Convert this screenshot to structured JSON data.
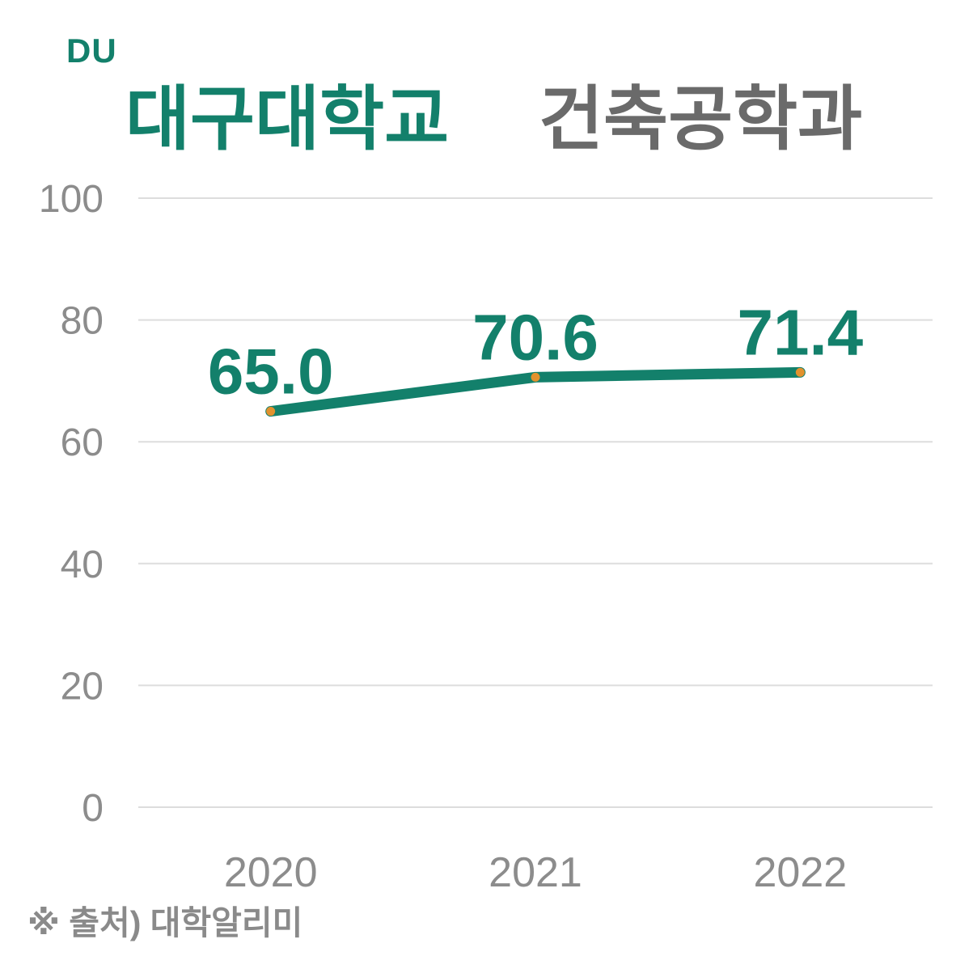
{
  "header": {
    "logo": "DU",
    "title_university": "대구대학교",
    "title_department": "건축공학과"
  },
  "footer": {
    "source_note": "※ 출처) 대학알리미"
  },
  "colors": {
    "accent_teal": "#13806B",
    "title_gray": "#6A6A6A",
    "axis_gray": "#8C8C8C",
    "gridline_gray": "#DDDDDD",
    "marker_orange": "#E2922E",
    "background": "#FFFFFF"
  },
  "chart_data": {
    "type": "line",
    "title": "대구대학교 건축공학과",
    "categories": [
      "2020",
      "2021",
      "2022"
    ],
    "values": [
      65.0,
      70.6,
      71.4
    ],
    "data_labels": [
      "65.0",
      "70.6",
      "71.4"
    ],
    "xlabel": "",
    "ylabel": "",
    "y_ticks": [
      0,
      20,
      40,
      60,
      80,
      100
    ],
    "ylim": [
      0,
      100
    ],
    "grid": true,
    "legend_position": "none",
    "line_color": "#13806B",
    "marker_color": "#E2922E"
  }
}
